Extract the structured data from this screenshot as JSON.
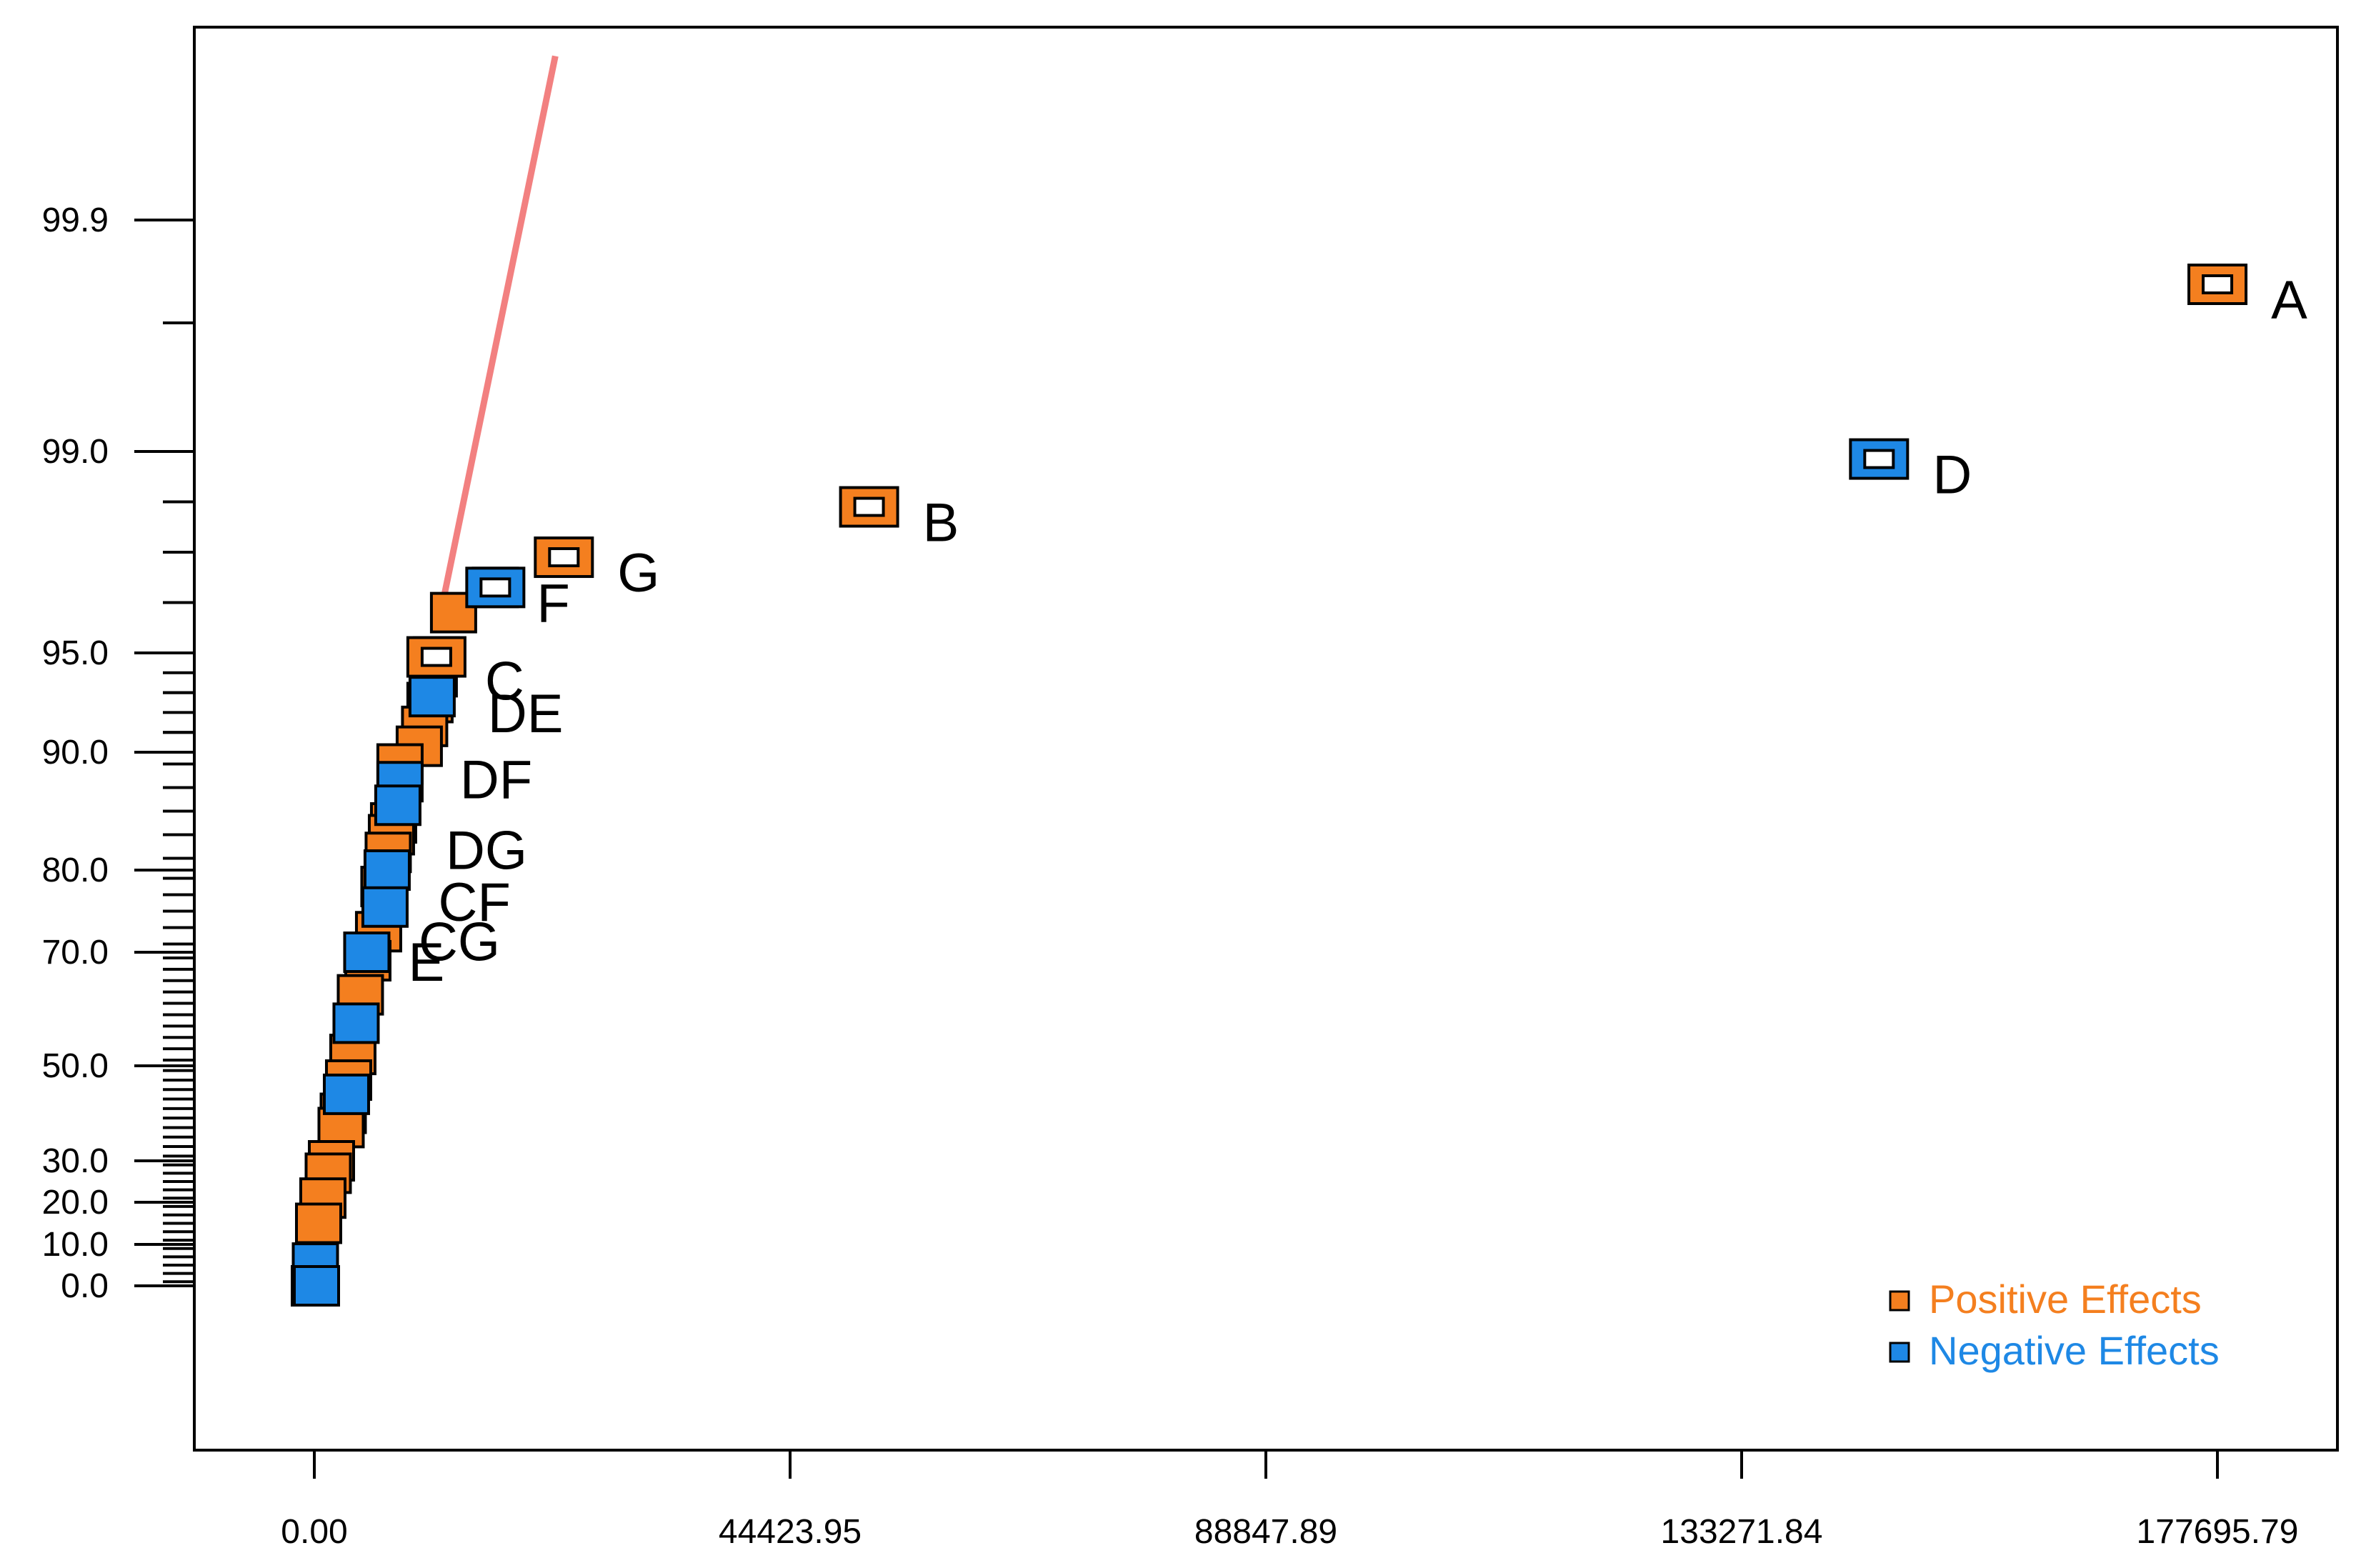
{
  "chart_data": {
    "type": "scatter",
    "title": "",
    "xlabel": "",
    "ylabel": "",
    "x_ticks": [
      "0.00",
      "44423.95",
      "88847.89",
      "133271.84",
      "177695.79"
    ],
    "x_tick_values": [
      0,
      44423.95,
      88847.89,
      133271.84,
      177695.79
    ],
    "xlim": [
      -11000,
      190000
    ],
    "y_scale": "normal-probability",
    "y_ticks": [
      "0.0",
      "10.0",
      "20.0",
      "30.0",
      "50.0",
      "70.0",
      "80.0",
      "90.0",
      "95.0",
      "99.0",
      "99.9"
    ],
    "y_tick_values": [
      0.0,
      10.0,
      20.0,
      30.0,
      50.0,
      70.0,
      80.0,
      90.0,
      95.0,
      99.0,
      99.9
    ],
    "grid": false,
    "legend_position": "bottom-right",
    "colors": {
      "positive": "#F47F1F",
      "negative": "#1E88E5",
      "fit_line": "#F28080",
      "axis": "#000000"
    },
    "legend": [
      {
        "label": "Positive Effects",
        "color": "#F47F1F"
      },
      {
        "label": "Negative Effects",
        "color": "#1E88E5"
      }
    ],
    "fit_line": {
      "from": [
        11800,
        95.8
      ],
      "to": [
        22500,
        99.985
      ]
    },
    "series": [
      {
        "name": "Positive Effects",
        "highlighted_points": [
          {
            "label": "A",
            "x": 177700,
            "y": 99.65
          },
          {
            "label": "B",
            "x": 51800,
            "y": 97.9
          },
          {
            "label": "G",
            "x": 23300,
            "y": 96.9
          },
          {
            "label": "C",
            "x": 11400,
            "y": 94.8
          },
          {
            "label": "DF",
            "x": 8000,
            "y": 89.0
          },
          {
            "label": "DG",
            "x": 7200,
            "y": 83.0
          },
          {
            "label": "CF",
            "x": 6500,
            "y": 78.0
          },
          {
            "label": "CG",
            "x": 6000,
            "y": 72.5
          }
        ],
        "points": [
          {
            "x": 13000,
            "y": 95.8
          },
          {
            "x": 11400,
            "y": 94.8
          },
          {
            "x": 11200,
            "y": 93.8
          },
          {
            "x": 10800,
            "y": 92.5
          },
          {
            "x": 10300,
            "y": 91.3
          },
          {
            "x": 9800,
            "y": 90.3
          },
          {
            "x": 8000,
            "y": 89.0
          },
          {
            "x": 7400,
            "y": 84.0
          },
          {
            "x": 7200,
            "y": 83.0
          },
          {
            "x": 6900,
            "y": 81.5
          },
          {
            "x": 6500,
            "y": 78.0
          },
          {
            "x": 6000,
            "y": 72.5
          },
          {
            "x": 5000,
            "y": 68.5
          },
          {
            "x": 4300,
            "y": 62.5
          },
          {
            "x": 3600,
            "y": 52.0
          },
          {
            "x": 3200,
            "y": 47.0
          },
          {
            "x": 2700,
            "y": 40.0
          },
          {
            "x": 2500,
            "y": 37.0
          },
          {
            "x": 1600,
            "y": 30.0
          },
          {
            "x": 1300,
            "y": 27.0
          },
          {
            "x": 800,
            "y": 21.0
          },
          {
            "x": 400,
            "y": 15.0
          }
        ]
      },
      {
        "name": "Negative Effects",
        "highlighted_points": [
          {
            "label": "D",
            "x": 146100,
            "y": 98.85
          },
          {
            "label": "F",
            "x": 16900,
            "y": 96.3
          },
          {
            "label": "DE",
            "x": 11000,
            "y": 92.8
          },
          {
            "label": "E",
            "x": 4900,
            "y": 70.0
          }
        ],
        "points": [
          {
            "x": 16900,
            "y": 96.3
          },
          {
            "x": 11000,
            "y": 92.8
          },
          {
            "x": 8000,
            "y": 87.5
          },
          {
            "x": 7800,
            "y": 85.5
          },
          {
            "x": 6800,
            "y": 80.0
          },
          {
            "x": 6600,
            "y": 75.5
          },
          {
            "x": 4900,
            "y": 70.0
          },
          {
            "x": 3900,
            "y": 57.5
          },
          {
            "x": 3000,
            "y": 44.0
          },
          {
            "x": 100,
            "y": 5.5
          },
          {
            "x": 0,
            "y": 0.0
          },
          {
            "x": 200,
            "y": 0.0
          }
        ]
      }
    ]
  }
}
